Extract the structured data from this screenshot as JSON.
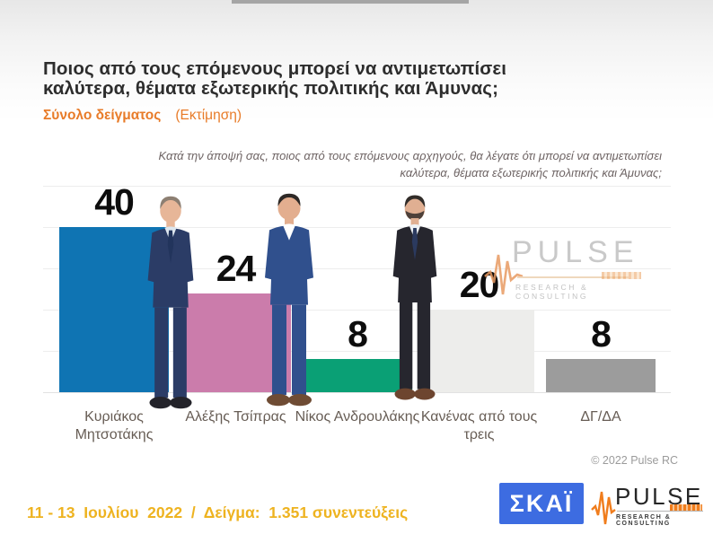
{
  "header": {
    "title": "Ποιος από τους επόμενους μπορεί να αντιμετωπίσει καλύτερα, θέματα εξωτερικής πολιτικής και Άμυνας;",
    "sample_label": "Σύνολο δείγματος",
    "estimate_label": "(Εκτίμηση)",
    "question_note": "Κατά την άποψή σας, ποιος  από τους επόμενους αρχηγούς, θα λέγατε ότι μπορεί να αντιμετωπίσει καλύτερα, θέματα εξωτερικής πολιτικής και Άμυνας;"
  },
  "chart_data": {
    "type": "bar",
    "title": "Ποιος από τους επόμενους μπορεί να αντιμετωπίσει καλύτερα, θέματα εξωτερικής πολιτικής και Άμυνας;",
    "categories": [
      "Κυριάκος Μητσοτάκης",
      "Αλέξης Τσίπρας",
      "Νίκος Ανδρουλάκης",
      "Κανένας από τους τρεις",
      "ΔΓ/ΔΑ"
    ],
    "values": [
      40,
      24,
      8,
      20,
      8
    ],
    "bar_colors": [
      "#0f74b3",
      "#cb7cab",
      "#0aa075",
      "#ededeb",
      "#9c9c9c"
    ],
    "value_label_color": "#0d0d0d",
    "xlabel": "",
    "ylabel": "",
    "ylim": [
      0,
      50
    ],
    "grid": true,
    "gridline_step": 10,
    "legend": false,
    "photos": [
      "Κυριάκος Μητσοτάκης",
      "Αλέξης Τσίπρας",
      "Νίκος Ανδρουλάκης"
    ]
  },
  "watermark": {
    "brand": "PULSE",
    "tagline": "RESEARCH & CONSULTING"
  },
  "footer": {
    "copyright": "© 2022 Pulse RC",
    "survey_info": "11 - 13  Ιουλίου  2022  /  Δείγμα:  1.351 συνεντεύξεις",
    "skai_logo_text": "ΣΚΑΪ",
    "pulse_logo_text": "PULSE",
    "pulse_logo_tagline": "RESEARCH & CONSULTING"
  }
}
